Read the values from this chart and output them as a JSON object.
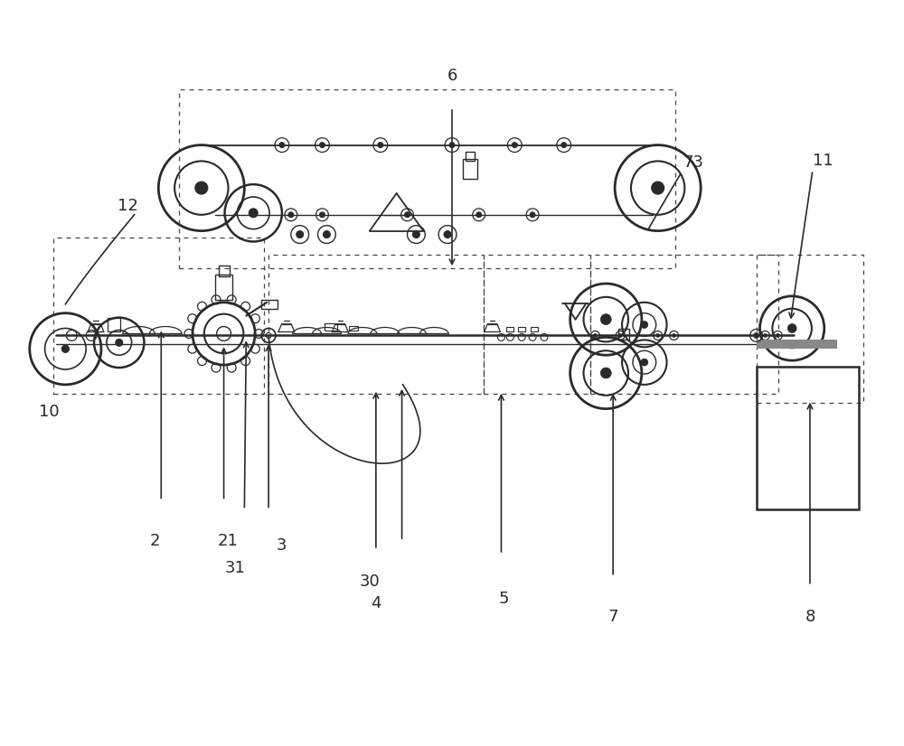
{
  "fig_width": 10.0,
  "fig_height": 8.26,
  "dpi": 100,
  "bg_color": "#ffffff",
  "line_color": "#2a2a2a",
  "dashed_color": "#444444"
}
